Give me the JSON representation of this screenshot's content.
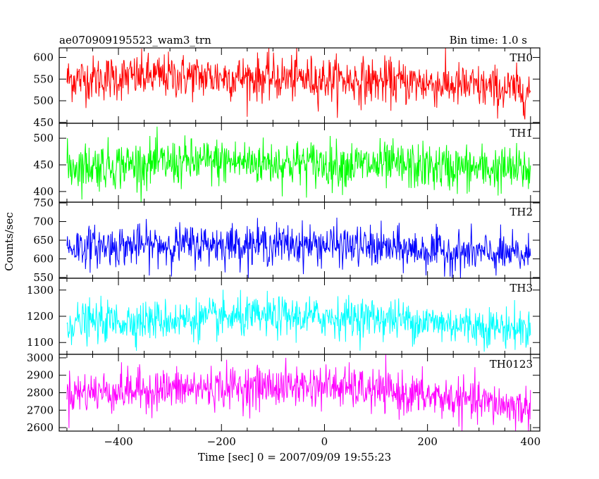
{
  "header": {
    "left_title": "ae070909195523_wam3_trn",
    "right_title": "Bin time: 1.0 s"
  },
  "chart_data": {
    "type": "line",
    "ylabel": "Counts/sec",
    "xlabel": "Time [sec] 0 = 2007/09/09 19:55:23",
    "xlim": [
      -515,
      418
    ],
    "x_step": 1,
    "x_range": [
      -500,
      400
    ],
    "x_ticks": [
      -400,
      -200,
      0,
      200,
      400
    ],
    "grid": false,
    "panels": [
      {
        "name": "TH0",
        "color": "#ff0000",
        "ylim": [
          448,
          622
        ],
        "y_ticks": [
          450,
          500,
          550,
          600
        ],
        "trend": [
          [
            -500,
            550
          ],
          [
            -300,
            557
          ],
          [
            0,
            550
          ],
          [
            200,
            540
          ],
          [
            400,
            522
          ]
        ],
        "noise_sd": 26
      },
      {
        "name": "TH1",
        "color": "#00ff00",
        "ylim": [
          380,
          528
        ],
        "y_ticks": [
          400,
          450,
          500
        ],
        "trend": [
          [
            -500,
            447
          ],
          [
            -200,
            456
          ],
          [
            0,
            452
          ],
          [
            200,
            446
          ],
          [
            400,
            440
          ]
        ],
        "noise_sd": 22
      },
      {
        "name": "TH2",
        "color": "#0000ff",
        "ylim": [
          548,
          752
        ],
        "y_ticks": [
          550,
          600,
          650,
          700,
          750
        ],
        "trend": [
          [
            -500,
            632
          ],
          [
            -200,
            640
          ],
          [
            0,
            638
          ],
          [
            200,
            622
          ],
          [
            400,
            608
          ]
        ],
        "noise_sd": 27
      },
      {
        "name": "TH3",
        "color": "#00ffff",
        "ylim": [
          1055,
          1345
        ],
        "y_ticks": [
          1100,
          1200,
          1300
        ],
        "trend": [
          [
            -500,
            1175
          ],
          [
            -100,
            1198
          ],
          [
            100,
            1195
          ],
          [
            250,
            1170
          ],
          [
            400,
            1150
          ]
        ],
        "noise_sd": 38
      },
      {
        "name": "TH0123",
        "color": "#ff00ff",
        "ylim": [
          2580,
          3020
        ],
        "y_ticks": [
          2600,
          2700,
          2800,
          2900,
          3000
        ],
        "trend": [
          [
            -500,
            2800
          ],
          [
            -200,
            2830
          ],
          [
            0,
            2840
          ],
          [
            200,
            2780
          ],
          [
            400,
            2710
          ]
        ],
        "noise_sd": 60
      }
    ]
  }
}
